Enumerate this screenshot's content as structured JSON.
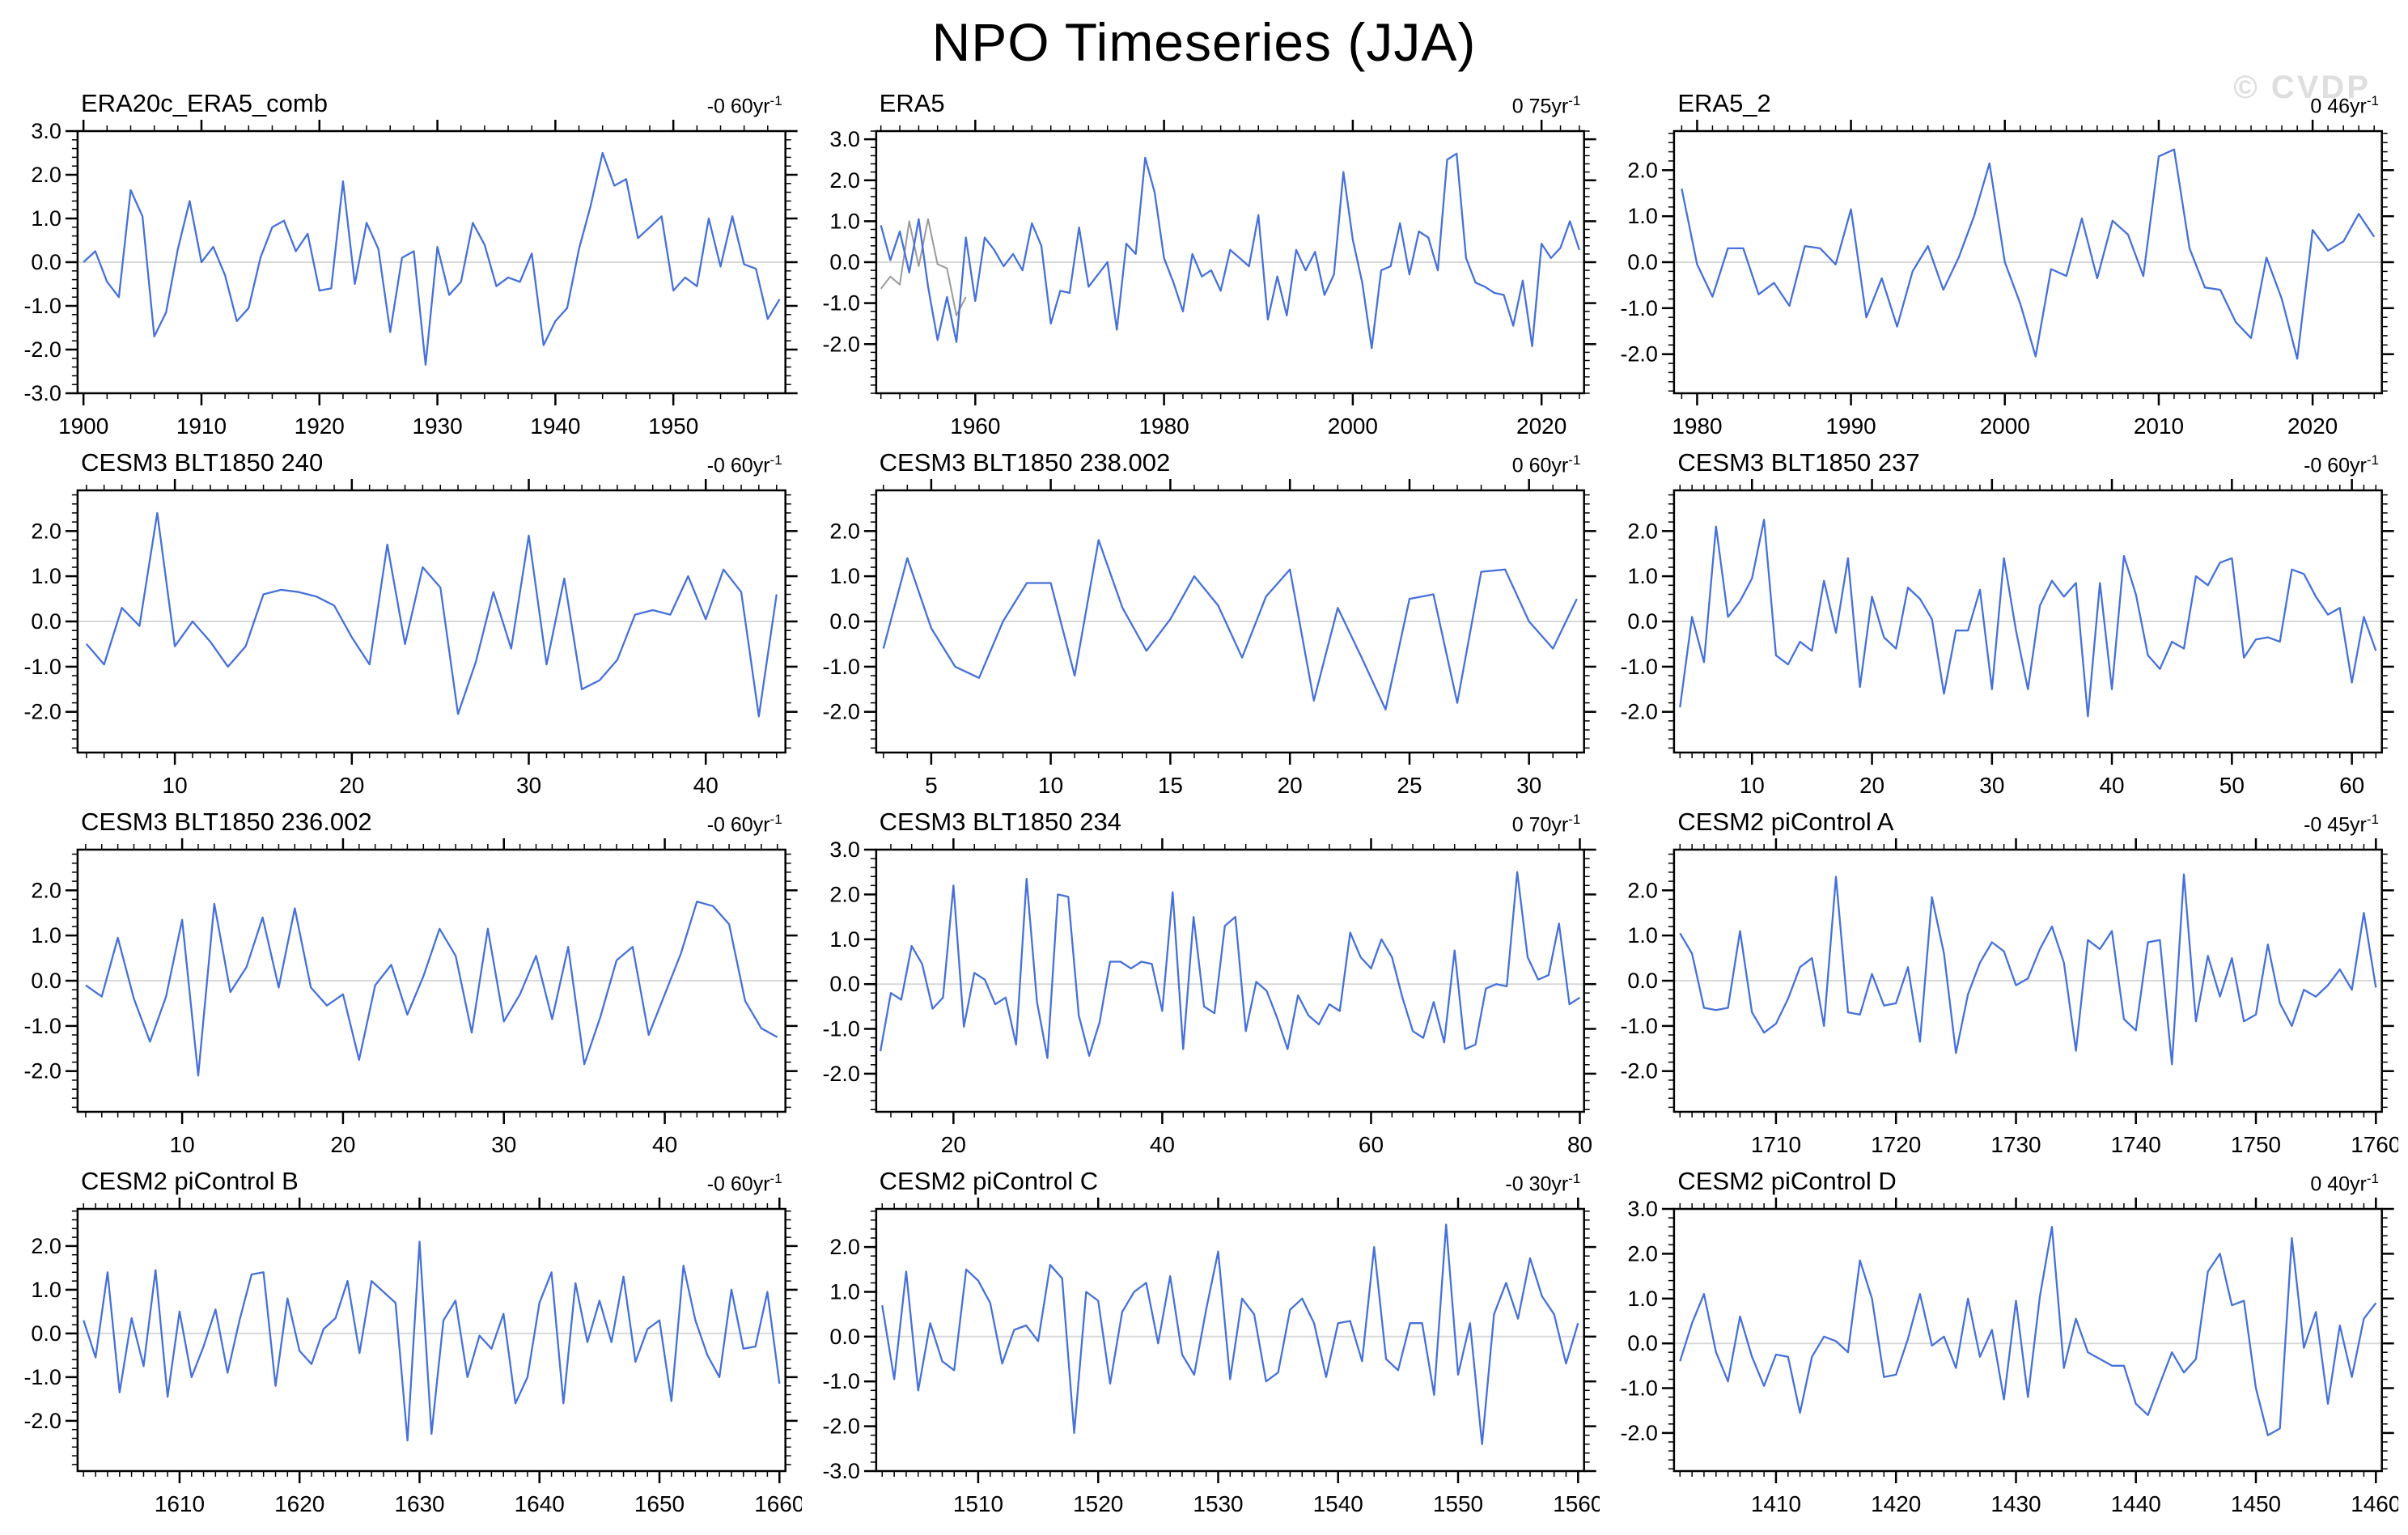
{
  "header": {
    "title": "NPO Timeseries (JJA)",
    "watermark": "© CVDP"
  },
  "colors": {
    "line": "#4671d9",
    "overlay_line": "#9a9a9a",
    "zero_line": "#d9d9d9",
    "axis": "#000000",
    "watermark": "#dedede"
  },
  "chart_data": [
    {
      "type": "line",
      "title": "ERA20c_ERA5_comb",
      "trend_label": "-0 60yr",
      "trend_exponent": "-1",
      "x_start": 1900,
      "x_step": 1,
      "xlim": [
        1899.5,
        1959.5
      ],
      "xticks": [
        1900,
        1910,
        1920,
        1930,
        1940,
        1950
      ],
      "x_minor": 2,
      "ylim": [
        -3.0,
        3.0
      ],
      "yticks": [
        3,
        2,
        1,
        0,
        -1,
        -2,
        -3
      ],
      "grid": false,
      "legend": "none",
      "values": [
        0.0,
        0.25,
        -0.45,
        -0.8,
        1.65,
        1.05,
        -1.7,
        -1.15,
        0.3,
        1.4,
        0.0,
        0.35,
        -0.3,
        -1.35,
        -1.05,
        0.1,
        0.8,
        0.95,
        0.25,
        0.65,
        -0.65,
        -0.6,
        1.85,
        -0.5,
        0.9,
        0.3,
        -1.6,
        0.1,
        0.25,
        -2.35,
        0.35,
        -0.75,
        -0.45,
        0.9,
        0.4,
        -0.55,
        -0.35,
        -0.45,
        0.2,
        -1.9,
        -1.35,
        -1.05,
        0.3,
        1.3,
        2.5,
        1.75,
        1.9,
        0.55,
        0.8,
        1.05,
        -0.65,
        -0.35,
        -0.55,
        1.0,
        -0.1,
        1.05,
        -0.05,
        -0.15,
        -1.3,
        -0.85
      ]
    },
    {
      "type": "line",
      "title": "ERA5",
      "trend_label": "0 75yr",
      "trend_exponent": "-1",
      "x_start": 1950,
      "x_step": 1,
      "xlim": [
        1949.5,
        2024.5
      ],
      "xticks": [
        1960,
        1980,
        2000,
        2020
      ],
      "x_minor": 2,
      "ylim": [
        -3.2,
        3.2
      ],
      "yticks": [
        3,
        2,
        1,
        0,
        -1,
        -2
      ],
      "grid": false,
      "legend": "none",
      "values": [
        0.9,
        0.05,
        0.75,
        -0.25,
        1.05,
        -0.6,
        -1.9,
        -0.85,
        -1.95,
        0.6,
        -0.95,
        0.6,
        0.3,
        -0.1,
        0.2,
        -0.2,
        0.95,
        0.4,
        -1.5,
        -0.7,
        -0.75,
        0.85,
        -0.6,
        -0.3,
        0.0,
        -1.65,
        0.45,
        0.2,
        2.55,
        1.7,
        0.1,
        -0.5,
        -1.2,
        0.2,
        -0.35,
        -0.2,
        -0.7,
        0.3,
        0.1,
        -0.1,
        1.15,
        -1.4,
        -0.35,
        -1.3,
        0.3,
        -0.2,
        0.25,
        -0.8,
        -0.3,
        2.2,
        0.55,
        -0.5,
        -2.1,
        -0.2,
        -0.1,
        0.95,
        -0.3,
        0.75,
        0.6,
        -0.2,
        2.5,
        2.65,
        0.1,
        -0.5,
        -0.6,
        -0.75,
        -0.8,
        -1.55,
        -0.45,
        -2.05,
        0.45,
        0.1,
        0.35,
        1.0,
        0.3
      ],
      "overlay": {
        "x_start": 1950,
        "values": [
          -0.65,
          -0.35,
          -0.55,
          1.0,
          -0.1,
          1.05,
          -0.05,
          -0.15,
          -1.3,
          -0.85
        ]
      }
    },
    {
      "type": "line",
      "title": "ERA5_2",
      "trend_label": "0 46yr",
      "trend_exponent": "-1",
      "x_start": 1979,
      "x_step": 1,
      "xlim": [
        1978.5,
        2024.5
      ],
      "xticks": [
        1980,
        1990,
        2000,
        2010,
        2020
      ],
      "x_minor": 1,
      "ylim": [
        -2.85,
        2.85
      ],
      "yticks": [
        2,
        1,
        0,
        -1,
        -2
      ],
      "grid": false,
      "legend": "none",
      "values": [
        1.6,
        -0.05,
        -0.75,
        0.3,
        0.3,
        -0.7,
        -0.45,
        -0.95,
        0.35,
        0.3,
        -0.05,
        1.15,
        -1.2,
        -0.35,
        -1.4,
        -0.2,
        0.35,
        -0.6,
        0.1,
        1.0,
        2.15,
        0.0,
        -0.9,
        -2.05,
        -0.15,
        -0.3,
        0.95,
        -0.35,
        0.9,
        0.6,
        -0.3,
        2.3,
        2.45,
        0.3,
        -0.55,
        -0.6,
        -1.3,
        -1.65,
        0.1,
        -0.8,
        -2.1,
        0.7,
        0.25,
        0.45,
        1.05,
        0.55
      ]
    },
    {
      "type": "line",
      "title": "CESM3 BLT1850 240",
      "trend_label": "-0 60yr",
      "trend_exponent": "-1",
      "x_start": 5,
      "x_step": 1,
      "xlim": [
        4.5,
        44.5
      ],
      "xticks": [
        10,
        20,
        30,
        40
      ],
      "x_minor": 1,
      "ylim": [
        -2.9,
        2.9
      ],
      "yticks": [
        2,
        1,
        0,
        -1,
        -2
      ],
      "grid": false,
      "legend": "none",
      "values": [
        -0.5,
        -0.95,
        0.3,
        -0.1,
        2.4,
        -0.55,
        0.0,
        -0.45,
        -1.0,
        -0.55,
        0.6,
        0.7,
        0.65,
        0.55,
        0.35,
        -0.35,
        -0.95,
        1.7,
        -0.5,
        1.2,
        0.75,
        -2.05,
        -0.9,
        0.65,
        -0.6,
        1.9,
        -0.95,
        0.95,
        -1.5,
        -1.3,
        -0.85,
        0.15,
        0.25,
        0.15,
        1.0,
        0.05,
        1.15,
        0.65,
        -2.1,
        0.6
      ]
    },
    {
      "type": "line",
      "title": "CESM3 BLT1850 238.002",
      "trend_label": "0 60yr",
      "trend_exponent": "-1",
      "x_start": 3,
      "x_step": 1,
      "xlim": [
        2.7,
        32.3
      ],
      "xticks": [
        5,
        10,
        15,
        20,
        25,
        30
      ],
      "x_minor": 1,
      "ylim": [
        -2.9,
        2.9
      ],
      "yticks": [
        2,
        1,
        0,
        -1,
        -2
      ],
      "grid": false,
      "legend": "none",
      "values": [
        -0.6,
        1.4,
        -0.15,
        -1.0,
        -1.25,
        0.0,
        0.85,
        0.85,
        -1.2,
        1.8,
        0.3,
        -0.65,
        0.05,
        1.0,
        0.35,
        -0.8,
        0.55,
        1.15,
        -1.75,
        0.3,
        -0.8,
        -1.95,
        0.5,
        0.6,
        -1.8,
        1.1,
        1.15,
        0.0,
        -0.6,
        0.5
      ]
    },
    {
      "type": "line",
      "title": "CESM3 BLT1850 237",
      "trend_label": "-0 60yr",
      "trend_exponent": "-1",
      "x_start": 4,
      "x_step": 1,
      "xlim": [
        3.5,
        62.5
      ],
      "xticks": [
        10,
        20,
        30,
        40,
        50,
        60
      ],
      "x_minor": 1,
      "ylim": [
        -2.9,
        2.9
      ],
      "yticks": [
        2,
        1,
        0,
        -1,
        -2
      ],
      "grid": false,
      "legend": "none",
      "values": [
        -1.9,
        0.1,
        -0.9,
        2.1,
        0.1,
        0.45,
        0.95,
        2.25,
        -0.75,
        -0.95,
        -0.45,
        -0.65,
        0.9,
        -0.25,
        1.4,
        -1.45,
        0.55,
        -0.35,
        -0.6,
        0.75,
        0.5,
        0.05,
        -1.6,
        -0.2,
        -0.2,
        0.7,
        -1.5,
        1.4,
        -0.2,
        -1.5,
        0.35,
        0.9,
        0.55,
        0.85,
        -2.1,
        0.85,
        -1.5,
        1.45,
        0.6,
        -0.75,
        -1.05,
        -0.45,
        -0.6,
        1.0,
        0.8,
        1.3,
        1.4,
        -0.8,
        -0.4,
        -0.35,
        -0.45,
        1.15,
        1.05,
        0.55,
        0.15,
        0.3,
        -1.35,
        0.1,
        -0.65
      ]
    },
    {
      "type": "line",
      "title": "CESM3 BLT1850 236.002",
      "trend_label": "-0 60yr",
      "trend_exponent": "-1",
      "x_start": 4,
      "x_step": 1,
      "xlim": [
        3.5,
        47.5
      ],
      "xticks": [
        10,
        20,
        30,
        40
      ],
      "x_minor": 1,
      "ylim": [
        -2.9,
        2.9
      ],
      "yticks": [
        2,
        1,
        0,
        -1,
        -2
      ],
      "grid": false,
      "legend": "none",
      "values": [
        -0.1,
        -0.35,
        0.95,
        -0.4,
        -1.35,
        -0.35,
        1.35,
        -2.1,
        1.7,
        -0.25,
        0.3,
        1.4,
        -0.15,
        1.6,
        -0.15,
        -0.55,
        -0.3,
        -1.75,
        -0.1,
        0.35,
        -0.75,
        0.1,
        1.15,
        0.55,
        -1.15,
        1.15,
        -0.9,
        -0.3,
        0.55,
        -0.85,
        0.75,
        -1.85,
        -0.8,
        0.45,
        0.75,
        -1.2,
        -0.3,
        0.6,
        1.75,
        1.65,
        1.25,
        -0.45,
        -1.05,
        -1.25
      ]
    },
    {
      "type": "line",
      "title": "CESM3 BLT1850 234",
      "trend_label": "0 70yr",
      "trend_exponent": "-1",
      "x_start": 13,
      "x_step": 1,
      "xlim": [
        12.6,
        80.4
      ],
      "xticks": [
        20,
        40,
        60,
        80
      ],
      "x_minor": 2,
      "ylim": [
        -2.85,
        3.0
      ],
      "yticks": [
        3,
        2,
        1,
        0,
        -1,
        -2
      ],
      "grid": false,
      "legend": "none",
      "values": [
        -1.5,
        -0.2,
        -0.35,
        0.85,
        0.45,
        -0.55,
        -0.3,
        2.2,
        -0.95,
        0.25,
        0.1,
        -0.45,
        -0.3,
        -1.35,
        2.35,
        -0.4,
        -1.65,
        2.0,
        1.95,
        -0.7,
        -1.6,
        -0.85,
        0.5,
        0.5,
        0.35,
        0.5,
        0.45,
        -0.6,
        2.05,
        -1.45,
        1.5,
        -0.5,
        -0.65,
        1.3,
        1.5,
        -1.05,
        0.05,
        -0.15,
        -0.75,
        -1.45,
        -0.25,
        -0.7,
        -0.9,
        -0.45,
        -0.6,
        1.15,
        0.6,
        0.35,
        1.0,
        0.6,
        -0.3,
        -1.05,
        -1.2,
        -0.4,
        -1.3,
        0.75,
        -1.45,
        -1.35,
        -0.1,
        0.0,
        -0.05,
        2.5,
        0.6,
        0.1,
        0.2,
        1.35,
        -0.45,
        -0.3
      ]
    },
    {
      "type": "line",
      "title": "CESM2 piControl A",
      "trend_label": "-0 45yr",
      "trend_exponent": "-1",
      "x_start": 1702,
      "x_step": 1,
      "xlim": [
        1701.5,
        1760.5
      ],
      "xticks": [
        1710,
        1720,
        1730,
        1740,
        1750,
        1760
      ],
      "x_minor": 1,
      "ylim": [
        -2.9,
        2.9
      ],
      "yticks": [
        2,
        1,
        0,
        -1,
        -2
      ],
      "grid": false,
      "legend": "none",
      "values": [
        1.05,
        0.6,
        -0.6,
        -0.65,
        -0.6,
        1.1,
        -0.7,
        -1.15,
        -0.95,
        -0.4,
        0.3,
        0.5,
        -1.0,
        2.3,
        -0.7,
        -0.75,
        0.15,
        -0.55,
        -0.5,
        0.3,
        -1.35,
        1.85,
        0.6,
        -1.6,
        -0.3,
        0.4,
        0.85,
        0.65,
        -0.1,
        0.05,
        0.7,
        1.2,
        0.4,
        -1.55,
        0.9,
        0.7,
        1.1,
        -0.85,
        -1.1,
        0.85,
        0.9,
        -1.85,
        2.35,
        -0.9,
        0.55,
        -0.35,
        0.5,
        -0.9,
        -0.75,
        0.8,
        -0.5,
        -1.0,
        -0.2,
        -0.35,
        -0.1,
        0.25,
        -0.2,
        1.5,
        -0.15
      ]
    },
    {
      "type": "line",
      "title": "CESM2 piControl B",
      "trend_label": "-0 60yr",
      "trend_exponent": "-1",
      "x_start": 1602,
      "x_step": 1,
      "xlim": [
        1601.5,
        1660.5
      ],
      "xticks": [
        1610,
        1620,
        1630,
        1640,
        1650,
        1660
      ],
      "x_minor": 1,
      "ylim": [
        -3.15,
        2.85
      ],
      "yticks": [
        2,
        1,
        0,
        -1,
        -2
      ],
      "grid": false,
      "legend": "none",
      "values": [
        0.3,
        -0.55,
        1.4,
        -1.35,
        0.35,
        -0.75,
        1.45,
        -1.45,
        0.5,
        -1.0,
        -0.3,
        0.55,
        -0.9,
        0.3,
        1.35,
        1.4,
        -1.2,
        0.8,
        -0.4,
        -0.7,
        0.1,
        0.35,
        1.2,
        -0.45,
        1.2,
        0.95,
        0.7,
        -2.45,
        2.1,
        -2.3,
        0.3,
        0.75,
        -1.0,
        -0.05,
        -0.35,
        0.45,
        -1.6,
        -1.0,
        0.7,
        1.4,
        -1.6,
        1.15,
        -0.2,
        0.75,
        -0.2,
        1.3,
        -0.65,
        0.1,
        0.3,
        -1.55,
        1.55,
        0.3,
        -0.5,
        -1.0,
        1.0,
        -0.35,
        -0.3,
        0.95,
        -1.15
      ]
    },
    {
      "type": "line",
      "title": "CESM2 piControl C",
      "trend_label": "-0 30yr",
      "trend_exponent": "-1",
      "x_start": 1502,
      "x_step": 1,
      "xlim": [
        1501.5,
        1560.5
      ],
      "xticks": [
        1510,
        1520,
        1530,
        1540,
        1550,
        1560
      ],
      "x_minor": 1,
      "ylim": [
        -3.0,
        2.85
      ],
      "yticks": [
        2,
        1,
        0,
        -1,
        -2,
        -3
      ],
      "grid": false,
      "legend": "none",
      "values": [
        0.7,
        -0.95,
        1.45,
        -1.2,
        0.3,
        -0.55,
        -0.75,
        1.5,
        1.25,
        0.75,
        -0.6,
        0.15,
        0.25,
        -0.1,
        1.6,
        1.3,
        -2.15,
        1.0,
        0.8,
        -1.05,
        0.55,
        1.0,
        1.2,
        -0.15,
        1.35,
        -0.4,
        -0.85,
        0.6,
        1.9,
        -0.95,
        0.85,
        0.5,
        -1.0,
        -0.8,
        0.6,
        0.85,
        0.3,
        -0.9,
        0.3,
        0.35,
        -0.55,
        2.0,
        -0.5,
        -0.75,
        0.3,
        0.3,
        -1.3,
        2.5,
        -0.85,
        0.3,
        -2.4,
        0.5,
        1.2,
        0.4,
        1.75,
        0.9,
        0.5,
        -0.6,
        0.3
      ]
    },
    {
      "type": "line",
      "title": "CESM2 piControl D",
      "trend_label": "0 40yr",
      "trend_exponent": "-1",
      "x_start": 1402,
      "x_step": 1,
      "xlim": [
        1401.5,
        1460.5
      ],
      "xticks": [
        1410,
        1420,
        1430,
        1440,
        1450,
        1460
      ],
      "x_minor": 1,
      "ylim": [
        -2.85,
        3.0
      ],
      "yticks": [
        3,
        2,
        1,
        0,
        -1,
        -2
      ],
      "grid": false,
      "legend": "none",
      "values": [
        -0.4,
        0.45,
        1.1,
        -0.2,
        -0.85,
        0.6,
        -0.3,
        -0.95,
        -0.25,
        -0.3,
        -1.55,
        -0.3,
        0.15,
        0.05,
        -0.2,
        1.85,
        1.0,
        -0.75,
        -0.7,
        0.1,
        1.1,
        -0.05,
        0.15,
        -0.55,
        1.0,
        -0.3,
        0.3,
        -1.25,
        0.95,
        -1.2,
        1.05,
        2.6,
        -0.55,
        0.55,
        -0.2,
        -0.35,
        -0.5,
        -0.5,
        -1.35,
        -1.6,
        -0.9,
        -0.2,
        -0.65,
        -0.35,
        1.6,
        2.0,
        0.85,
        0.95,
        -1.0,
        -2.05,
        -1.9,
        2.35,
        -0.1,
        0.7,
        -1.35,
        0.4,
        -0.75,
        0.55,
        0.9
      ]
    }
  ]
}
